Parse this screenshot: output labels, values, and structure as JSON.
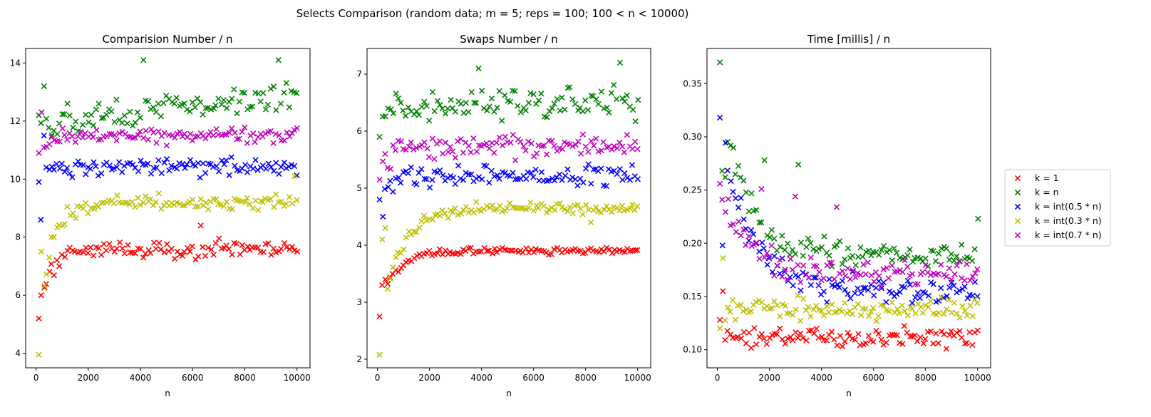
{
  "suptitle": "Selects Comparison (random data;  m = 5;  reps = 100;  100 < n < 10000)",
  "legend": {
    "placement": "right-center-outside",
    "entries": [
      {
        "label": "k = 1",
        "color": "#ff0000"
      },
      {
        "label": "k = n",
        "color": "#008000"
      },
      {
        "label": "k = int(0.5 * n)",
        "color": "#0000ff"
      },
      {
        "label": "k = int(0.3 * n)",
        "color": "#bfbf00"
      },
      {
        "label": "k = int(0.7 * n)",
        "color": "#bf00bf"
      }
    ]
  },
  "chart_data": [
    {
      "type": "scatter",
      "marker": "x",
      "title": "Comparision Number / n",
      "xlabel": "n",
      "ylabel": "",
      "xlim": [
        -400,
        10500
      ],
      "ylim": [
        3.5,
        14.5
      ],
      "xticks": [
        0,
        2000,
        4000,
        6000,
        8000,
        10000
      ],
      "xtick_labels": [
        "0",
        "2000",
        "4000",
        "6000",
        "8000",
        "10000"
      ],
      "yticks": [
        4,
        6,
        8,
        10,
        12,
        14
      ],
      "ytick_labels": [
        "4",
        "6",
        "8",
        "10",
        "12",
        "14"
      ],
      "grid": false,
      "x_series_range": [
        100,
        10000,
        100
      ],
      "series": [
        {
          "name": "k = 1",
          "color": "#ff0000",
          "base": 7.6,
          "start": 5.2,
          "settle": 0.5,
          "jitter": 0.45,
          "outliers": [
            [
              200,
              6.0
            ],
            [
              6300,
              8.4
            ]
          ]
        },
        {
          "name": "k = n",
          "color": "#008000",
          "base": 12.4,
          "start": 12.2,
          "settle": 0.2,
          "jitter": 0.7,
          "trend": 1.0,
          "outliers": [
            [
              300,
              13.2
            ],
            [
              4100,
              14.1
            ],
            [
              9300,
              14.1
            ]
          ]
        },
        {
          "name": "k = int(0.5 * n)",
          "color": "#0000ff",
          "base": 10.4,
          "start": 9.9,
          "settle": 0.3,
          "jitter": 0.45,
          "outliers": [
            [
              200,
              8.6
            ],
            [
              300,
              11.5
            ]
          ]
        },
        {
          "name": "k = int(0.3 * n)",
          "color": "#bfbf00",
          "base": 9.2,
          "start": 3.95,
          "settle": 0.5,
          "jitter": 0.4,
          "outliers": [
            [
              200,
              7.5
            ],
            [
              600,
              8.0
            ],
            [
              9900,
              10.1
            ]
          ]
        },
        {
          "name": "k = int(0.7 * n)",
          "color": "#bf00bf",
          "base": 11.5,
          "start": 10.9,
          "settle": 0.3,
          "jitter": 0.45,
          "outliers": [
            [
              200,
              12.3
            ]
          ]
        }
      ]
    },
    {
      "type": "scatter",
      "marker": "x",
      "title": "Swaps Number / n",
      "xlabel": "n",
      "ylabel": "",
      "xlim": [
        -400,
        10500
      ],
      "ylim": [
        1.85,
        7.45
      ],
      "xticks": [
        0,
        2000,
        4000,
        6000,
        8000,
        10000
      ],
      "xtick_labels": [
        "0",
        "2000",
        "4000",
        "6000",
        "8000",
        "10000"
      ],
      "yticks": [
        2,
        3,
        4,
        5,
        6,
        7
      ],
      "ytick_labels": [
        "2",
        "3",
        "4",
        "5",
        "6",
        "7"
      ],
      "grid": false,
      "x_series_range": [
        100,
        10000,
        100
      ],
      "series": [
        {
          "name": "k = 1",
          "color": "#ff0000",
          "base": 3.9,
          "start": 2.75,
          "settle": 0.6,
          "jitter": 0.08,
          "outliers": [
            [
              200,
              3.3
            ],
            [
              300,
              3.4
            ]
          ]
        },
        {
          "name": "k = n",
          "color": "#008000",
          "base": 6.5,
          "start": 5.9,
          "settle": 0.3,
          "jitter": 0.4,
          "outliers": [
            [
              400,
              6.4
            ],
            [
              3900,
              7.1
            ],
            [
              9300,
              7.2
            ]
          ]
        },
        {
          "name": "k = int(0.5 * n)",
          "color": "#0000ff",
          "base": 5.2,
          "start": 4.8,
          "settle": 0.4,
          "jitter": 0.25,
          "outliers": [
            [
              200,
              4.5
            ]
          ]
        },
        {
          "name": "k = int(0.3 * n)",
          "color": "#bfbf00",
          "base": 4.65,
          "start": 2.08,
          "settle": 0.7,
          "jitter": 0.15,
          "outliers": [
            [
              200,
              4.1
            ],
            [
              300,
              4.3
            ],
            [
              8200,
              4.4
            ]
          ]
        },
        {
          "name": "k = int(0.7 * n)",
          "color": "#bf00bf",
          "base": 5.75,
          "start": 5.15,
          "settle": 0.4,
          "jitter": 0.3,
          "outliers": [
            [
              300,
              5.6
            ]
          ]
        }
      ]
    },
    {
      "type": "scatter",
      "marker": "x",
      "title": "Time [millis] / n",
      "xlabel": "n",
      "ylabel": "",
      "xlim": [
        -400,
        10500
      ],
      "ylim": [
        0.083,
        0.383
      ],
      "xticks": [
        0,
        2000,
        4000,
        6000,
        8000,
        10000
      ],
      "xtick_labels": [
        "0",
        "2000",
        "4000",
        "6000",
        "8000",
        "10000"
      ],
      "yticks": [
        0.1,
        0.15,
        0.2,
        0.25,
        0.3,
        0.35
      ],
      "ytick_labels": [
        "0.10",
        "0.15",
        "0.20",
        "0.25",
        "0.30",
        "0.35"
      ],
      "grid": false,
      "x_series_range": [
        100,
        10000,
        100
      ],
      "series": [
        {
          "name": "k = 1",
          "color": "#ff0000",
          "base": 0.112,
          "start": 0.128,
          "settle": 0.2,
          "jitter": 0.014,
          "outliers": [
            [
              200,
              0.155
            ]
          ]
        },
        {
          "name": "k = n",
          "color": "#008000",
          "base": 0.19,
          "start": 0.37,
          "settle": 0.9,
          "jitter": 0.018,
          "outliers": [
            [
              200,
              0.268
            ],
            [
              300,
              0.262
            ],
            [
              1800,
              0.278
            ],
            [
              3100,
              0.274
            ],
            [
              10000,
              0.223
            ]
          ]
        },
        {
          "name": "k = int(0.5 * n)",
          "color": "#0000ff",
          "base": 0.155,
          "start": 0.318,
          "settle": 1.2,
          "jitter": 0.018,
          "outliers": [
            [
              200,
              0.198
            ]
          ]
        },
        {
          "name": "k = int(0.3 * n)",
          "color": "#bfbf00",
          "base": 0.138,
          "start": 0.12,
          "settle": 0.2,
          "jitter": 0.016,
          "outliers": [
            [
              200,
              0.186
            ]
          ]
        },
        {
          "name": "k = int(0.7 * n)",
          "color": "#bf00bf",
          "base": 0.17,
          "start": 0.256,
          "settle": 1.2,
          "jitter": 0.018,
          "outliers": [
            [
              1700,
              0.251
            ],
            [
              3000,
              0.244
            ],
            [
              4600,
              0.234
            ]
          ]
        }
      ]
    }
  ]
}
